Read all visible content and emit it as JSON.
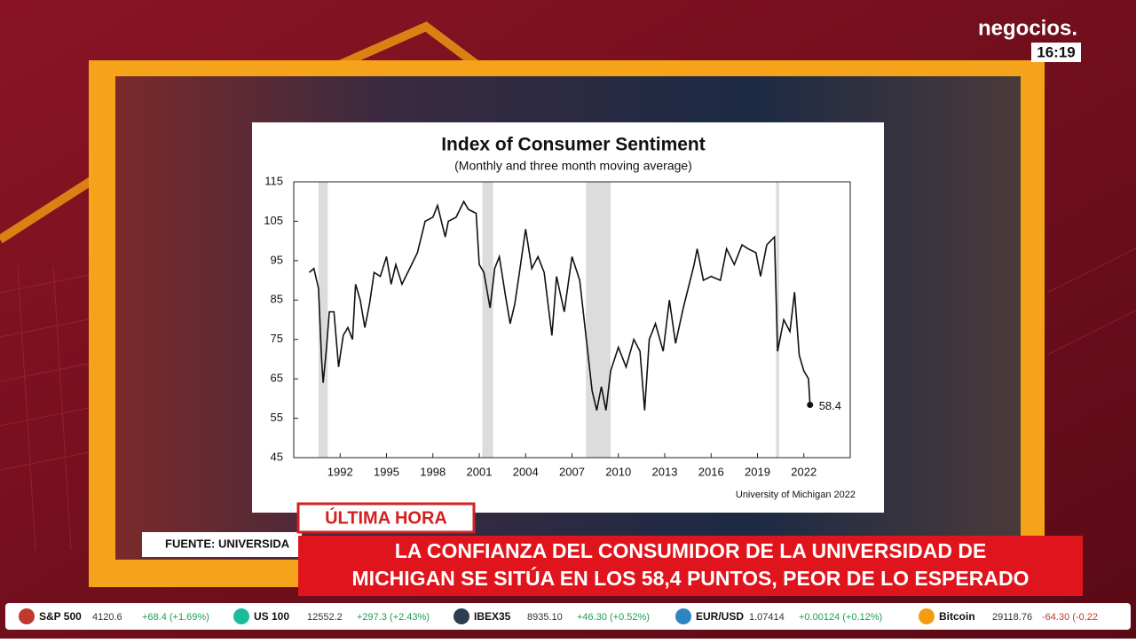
{
  "chart_data": {
    "type": "line",
    "title": "Index of Consumer Sentiment",
    "subtitle": "(Monthly and three month moving average)",
    "source": "University of Michigan 2022",
    "x": [
      1990.0,
      1990.3,
      1990.6,
      1990.8,
      1990.9,
      1991.1,
      1991.3,
      1991.6,
      1991.9,
      1992.2,
      1992.5,
      1992.8,
      1993.0,
      1993.3,
      1993.6,
      1993.9,
      1994.2,
      1994.6,
      1995.0,
      1995.3,
      1995.6,
      1996.0,
      1996.5,
      1997.0,
      1997.5,
      1998.0,
      1998.3,
      1998.8,
      1999.0,
      1999.5,
      2000.0,
      2000.3,
      2000.8,
      2001.0,
      2001.3,
      2001.7,
      2002.0,
      2002.3,
      2002.7,
      2003.0,
      2003.3,
      2003.6,
      2004.0,
      2004.4,
      2004.8,
      2005.2,
      2005.7,
      2006.0,
      2006.5,
      2007.0,
      2007.5,
      2007.9,
      2008.3,
      2008.6,
      2008.9,
      2009.2,
      2009.5,
      2010.0,
      2010.5,
      2011.0,
      2011.4,
      2011.7,
      2012.0,
      2012.4,
      2012.9,
      2013.3,
      2013.7,
      2014.2,
      2014.9,
      2015.1,
      2015.5,
      2016.0,
      2016.6,
      2017.0,
      2017.5,
      2018.0,
      2018.4,
      2018.9,
      2019.2,
      2019.6,
      2020.1,
      2020.3,
      2020.7,
      2021.1,
      2021.4,
      2021.7,
      2022.0,
      2022.3,
      2022.4
    ],
    "series": [
      {
        "name": "Index of Consumer Sentiment",
        "color": "#111111",
        "values": [
          92,
          93,
          88,
          70,
          64,
          72,
          82,
          82,
          68,
          76,
          78,
          75,
          89,
          85,
          78,
          84,
          92,
          91,
          96,
          89,
          94,
          89,
          93,
          97,
          105,
          106,
          109,
          101,
          105,
          106,
          110,
          108,
          107,
          94,
          92,
          83,
          93,
          96,
          86,
          79,
          84,
          92,
          103,
          93,
          96,
          92,
          76,
          91,
          82,
          96,
          90,
          76,
          62,
          57,
          63,
          57,
          67,
          73,
          68,
          75,
          72,
          57,
          75,
          79,
          72,
          85,
          74,
          83,
          94,
          98,
          90,
          91,
          90,
          98,
          94,
          99,
          98,
          97,
          91,
          99,
          101,
          72,
          80,
          77,
          87,
          71,
          67,
          65,
          58.4
        ]
      }
    ],
    "recessions": [
      [
        1990.6,
        1991.2
      ],
      [
        2001.2,
        2001.9
      ],
      [
        2007.9,
        2009.5
      ],
      [
        2020.2,
        2020.4
      ]
    ],
    "xlim": [
      1989,
      2025
    ],
    "xticks": [
      1992,
      1995,
      1998,
      2001,
      2004,
      2007,
      2010,
      2013,
      2016,
      2019,
      2022
    ],
    "ylim": [
      45,
      115
    ],
    "yticks": [
      45,
      55,
      65,
      75,
      85,
      95,
      105,
      115
    ]
  },
  "broadcast": {
    "logo": "negocios.",
    "time": "16:19",
    "breaking": "ÚLTIMA HORA",
    "source": "FUENTE:  UNIVERSIDA",
    "headline": [
      "LA CONFIANZA DEL CONSUMIDOR DE LA UNIVERSIDAD DE",
      "MICHIGAN SE SITÚA EN LOS 58,4 PUNTOS, PEOR DE LO ESPERADO"
    ],
    "ticker": [
      {
        "name": "S&P 500",
        "price": "4120.6",
        "change": "+68.4 (+1.69%)"
      },
      {
        "name": "US 100",
        "price": "12552.2",
        "change": "+297.3 (+2.43%)"
      },
      {
        "name": "IBEX35",
        "price": "8935.10",
        "change": "+46.30 (+0.52%)"
      },
      {
        "name": "EUR/USD",
        "price": "1.07414",
        "change": "+0.00124 (+0.12%)"
      },
      {
        "name": "Bitcoin",
        "price": "29118.76",
        "change": "-64.30 (-0.22"
      }
    ]
  }
}
